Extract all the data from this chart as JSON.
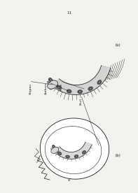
{
  "page_number": "11",
  "background_color": "#f4f2ee",
  "fig_labels": [
    "(a)",
    "(b)"
  ],
  "line_color": "#1a1a1a",
  "dark_gray": "#4a4a4a",
  "med_gray": "#888888",
  "light_gray": "#c8c8c8",
  "stigma_fill": "#d8d8d8",
  "anther_fill": "#606060"
}
